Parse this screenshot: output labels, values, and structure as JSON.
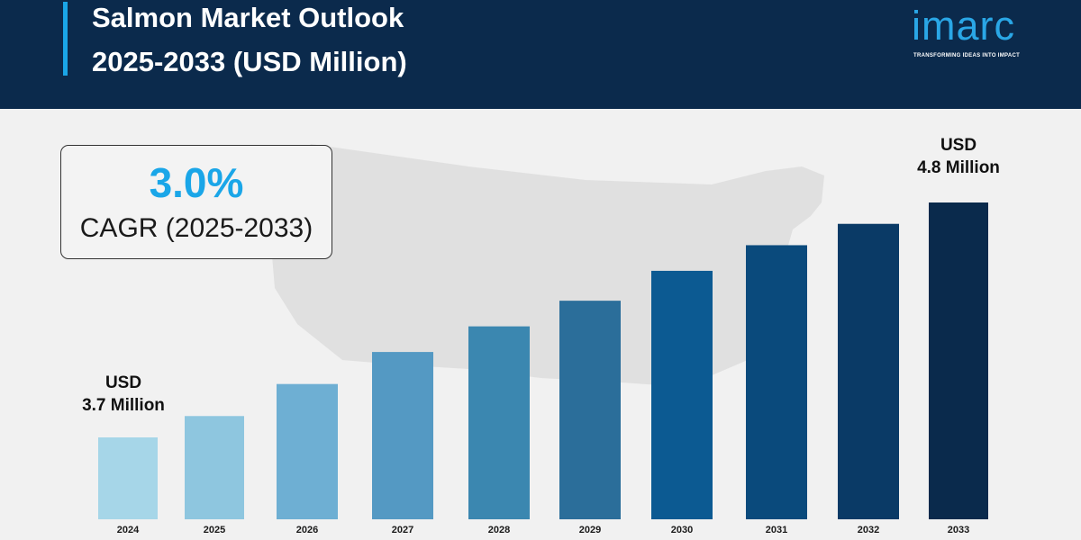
{
  "header": {
    "title_line1": "Salmon Market Outlook",
    "title_line2": "2025-2033 (USD Million)"
  },
  "logo": {
    "wordmark": "imarc",
    "tagline": "TRANSFORMING IDEAS INTO IMPACT"
  },
  "cagr": {
    "value": "3.0%",
    "label": "CAGR (2025-2033)"
  },
  "colors": {
    "header_bg": "#0b2a4c",
    "accent": "#1aa6e8",
    "bars": [
      "#a6d6e8",
      "#8ec6df",
      "#6eafd3",
      "#5499c3",
      "#3b87b0",
      "#2b6e9a",
      "#0c5a92",
      "#0a4a7c",
      "#0a3a66",
      "#0a2a4c"
    ]
  },
  "chart_data": {
    "type": "bar",
    "categories": [
      "2024",
      "2025",
      "2026",
      "2027",
      "2028",
      "2029",
      "2030",
      "2031",
      "2032",
      "2033"
    ],
    "values": [
      3.7,
      3.8,
      3.95,
      4.1,
      4.22,
      4.34,
      4.48,
      4.6,
      4.7,
      4.8
    ],
    "annotations": {
      "first": {
        "line1": "USD",
        "line2": "3.7 Million"
      },
      "last": {
        "line1": "USD",
        "line2": "4.8 Million"
      }
    }
  }
}
